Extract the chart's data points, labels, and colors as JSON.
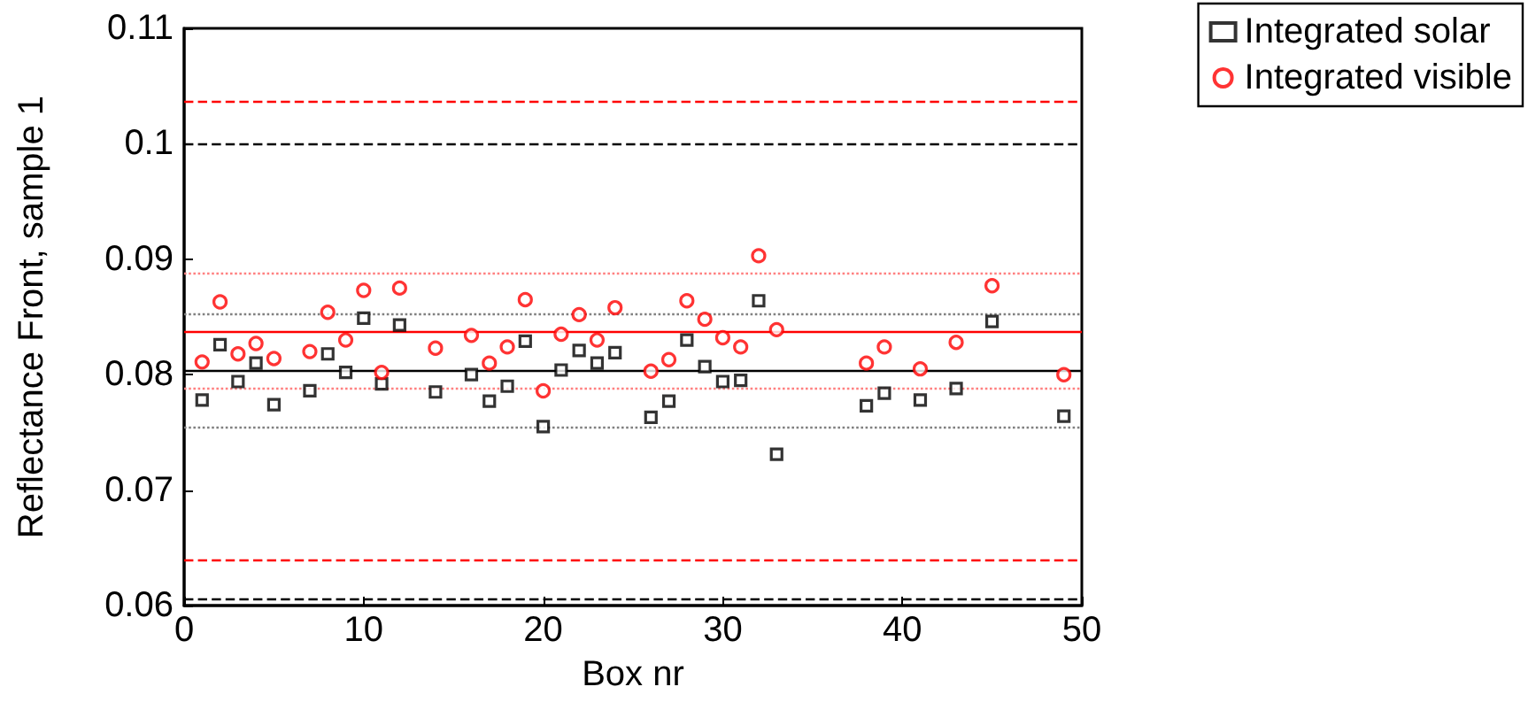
{
  "chart_data": {
    "type": "scatter",
    "xlabel": "Box nr",
    "ylabel": "Reflectance Front, sample 1",
    "xlim": [
      0,
      50
    ],
    "xticks": [
      0,
      10,
      20,
      30,
      40,
      50
    ],
    "ylim": [
      0.06,
      0.11
    ],
    "yticks": [
      0.06,
      0.07,
      0.08,
      0.09,
      0.1,
      0.11
    ],
    "grid": false,
    "legend": "top right",
    "series": [
      {
        "name": "Integrated solar",
        "color": "#000000",
        "marker": "square",
        "x": [
          1,
          2,
          3,
          4,
          5,
          7,
          8,
          9,
          10,
          11,
          12,
          14,
          16,
          17,
          18,
          19,
          20,
          21,
          22,
          23,
          24,
          26,
          27,
          28,
          29,
          30,
          31,
          32,
          33,
          38,
          39,
          41,
          43,
          45,
          49
        ],
        "values": [
          0.0778,
          0.0826,
          0.0794,
          0.081,
          0.0774,
          0.0786,
          0.0818,
          0.0802,
          0.0849,
          0.0792,
          0.0843,
          0.0785,
          0.08,
          0.0777,
          0.079,
          0.0829,
          0.0755,
          0.0804,
          0.0821,
          0.081,
          0.0819,
          0.0763,
          0.0777,
          0.083,
          0.0807,
          0.0794,
          0.0795,
          0.0864,
          0.0731,
          0.0773,
          0.0784,
          0.0778,
          0.0788,
          0.0846,
          0.0764
        ]
      },
      {
        "name": "Integrated visible",
        "color": "#ff0000",
        "marker": "circle",
        "x": [
          1,
          2,
          3,
          4,
          5,
          7,
          8,
          9,
          10,
          11,
          12,
          14,
          16,
          17,
          18,
          19,
          20,
          21,
          22,
          23,
          24,
          26,
          27,
          28,
          29,
          30,
          31,
          32,
          33,
          38,
          39,
          41,
          43,
          45,
          49
        ],
        "values": [
          0.0811,
          0.0863,
          0.0818,
          0.0827,
          0.0814,
          0.082,
          0.0854,
          0.083,
          0.0873,
          0.0802,
          0.0875,
          0.0823,
          0.0834,
          0.081,
          0.0824,
          0.0865,
          0.0786,
          0.0835,
          0.0852,
          0.083,
          0.0858,
          0.0803,
          0.0813,
          0.0864,
          0.0848,
          0.0832,
          0.0824,
          0.0903,
          0.0839,
          0.081,
          0.0824,
          0.0805,
          0.0828,
          0.0877,
          0.08
        ]
      }
    ],
    "ref_lines": [
      {
        "axis": "y",
        "value": 0.1037,
        "color": "#ff0000",
        "line_style": "dashed"
      },
      {
        "axis": "y",
        "value": 0.1,
        "color": "#000000",
        "line_style": "dashed"
      },
      {
        "axis": "y",
        "value": 0.0888,
        "color": "#ff8080",
        "line_style": "dotted"
      },
      {
        "axis": "y",
        "value": 0.0853,
        "color": "#808080",
        "line_style": "dotted"
      },
      {
        "axis": "y",
        "value": 0.0838,
        "color": "#ff0000",
        "line_style": "solid"
      },
      {
        "axis": "y",
        "value": 0.0804,
        "color": "#000000",
        "line_style": "solid"
      },
      {
        "axis": "y",
        "value": 0.0788,
        "color": "#ff8080",
        "line_style": "dotted"
      },
      {
        "axis": "y",
        "value": 0.0754,
        "color": "#808080",
        "line_style": "dotted"
      },
      {
        "axis": "y",
        "value": 0.064,
        "color": "#ff0000",
        "line_style": "dashed"
      },
      {
        "axis": "y",
        "value": 0.0606,
        "color": "#000000",
        "line_style": "dashed"
      }
    ]
  }
}
